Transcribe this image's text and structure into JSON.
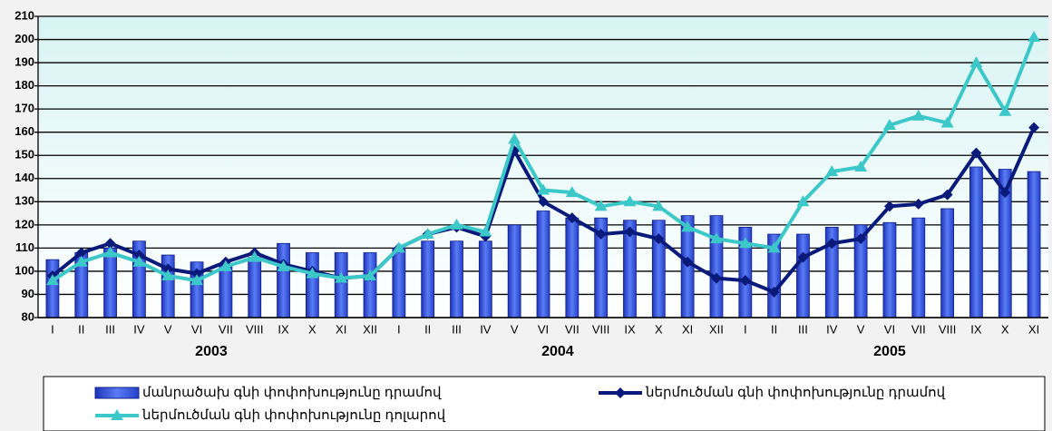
{
  "chart_data": {
    "type": "combo",
    "groups": [
      {
        "label": "2003",
        "categories": [
          "I",
          "II",
          "III",
          "IV",
          "V",
          "VI",
          "VII",
          "VIII",
          "IX",
          "X",
          "XI",
          "XII"
        ]
      },
      {
        "label": "2004",
        "categories": [
          "I",
          "II",
          "III",
          "IV",
          "V",
          "VI",
          "VII",
          "VIII",
          "IX",
          "X",
          "XI",
          "XII"
        ]
      },
      {
        "label": "2005",
        "categories": [
          "I",
          "II",
          "III",
          "IV",
          "V",
          "VI",
          "VII",
          "VIII",
          "IX",
          "X",
          "XI"
        ]
      }
    ],
    "series": [
      {
        "name": "մանրածախ գնի փոփոխությունը դրամով",
        "kind": "bar",
        "color": "#3a5fe0",
        "values": [
          105,
          108,
          110,
          113,
          107,
          104,
          103,
          106,
          112,
          108,
          108,
          108,
          110,
          113,
          113,
          113,
          120,
          126,
          123,
          123,
          122,
          122,
          124,
          124,
          119,
          116,
          116,
          119,
          120,
          121,
          123,
          127,
          145,
          144,
          143
        ]
      },
      {
        "name": "ներմուծման գնի փոփոխությունը դրամով",
        "kind": "line",
        "marker": "diamond",
        "color": "#0a1a7a",
        "values": [
          98,
          108,
          112,
          107,
          101,
          99,
          104,
          108,
          103,
          100,
          97,
          98,
          110,
          116,
          119,
          115,
          152,
          130,
          123,
          116,
          117,
          114,
          104,
          97,
          96,
          91,
          106,
          112,
          114,
          128,
          129,
          133,
          151,
          134,
          162
        ]
      },
      {
        "name": "ներմուծման գնի փոփոխությունը դոլարով",
        "kind": "line",
        "marker": "triangle",
        "color": "#3cc8c8",
        "values": [
          96,
          104,
          108,
          104,
          98,
          96,
          102,
          106,
          102,
          99,
          97,
          98,
          110,
          116,
          120,
          117,
          157,
          135,
          134,
          128,
          130,
          128,
          119,
          114,
          112,
          110,
          130,
          143,
          145,
          163,
          167,
          164,
          190,
          169,
          201
        ]
      }
    ],
    "ylim": [
      80,
      210
    ],
    "yticks": [
      80,
      90,
      100,
      110,
      120,
      130,
      140,
      150,
      160,
      170,
      180,
      190,
      200,
      210
    ],
    "grid": true
  }
}
